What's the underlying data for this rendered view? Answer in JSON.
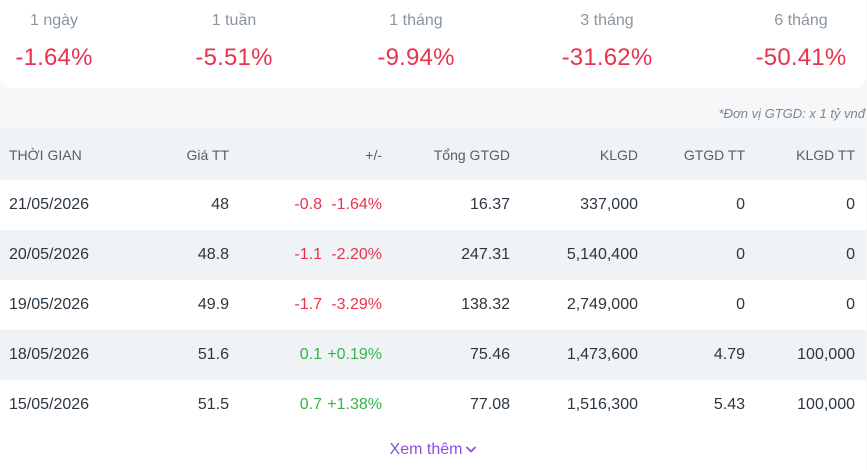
{
  "performance": [
    {
      "label": "1 ngày",
      "value": "-1.64%"
    },
    {
      "label": "1 tuần",
      "value": "-5.51%"
    },
    {
      "label": "1 tháng",
      "value": "-9.94%"
    },
    {
      "label": "3 tháng",
      "value": "-31.62%"
    },
    {
      "label": "6 tháng",
      "value": "-50.41%"
    }
  ],
  "unit_note": "*Đơn vị GTGD: x 1 tỷ vnđ",
  "table": {
    "headers": [
      "THỜI GIAN",
      "Giá TT",
      "+/-",
      "Tổng GTGD",
      "KLGD",
      "GTGD TT",
      "KLGD TT"
    ],
    "rows": [
      {
        "date": "21/05/2026",
        "price": "48",
        "change": "-0.8",
        "pct": "-1.64%",
        "direction": "down",
        "total_value": "16.37",
        "volume": "337,000",
        "deal_value": "0",
        "deal_volume": "0"
      },
      {
        "date": "20/05/2026",
        "price": "48.8",
        "change": "-1.1",
        "pct": "-2.20%",
        "direction": "down",
        "total_value": "247.31",
        "volume": "5,140,400",
        "deal_value": "0",
        "deal_volume": "0"
      },
      {
        "date": "19/05/2026",
        "price": "49.9",
        "change": "-1.7",
        "pct": "-3.29%",
        "direction": "down",
        "total_value": "138.32",
        "volume": "2,749,000",
        "deal_value": "0",
        "deal_volume": "0"
      },
      {
        "date": "18/05/2026",
        "price": "51.6",
        "change": "0.1",
        "pct": "+0.19%",
        "direction": "up",
        "total_value": "75.46",
        "volume": "1,473,600",
        "deal_value": "4.79",
        "deal_volume": "100,000"
      },
      {
        "date": "15/05/2026",
        "price": "51.5",
        "change": "0.7",
        "pct": "+1.38%",
        "direction": "up",
        "total_value": "77.08",
        "volume": "1,516,300",
        "deal_value": "5.43",
        "deal_volume": "100,000"
      }
    ]
  },
  "see_more": {
    "label": "Xem thêm",
    "icon": "chevron-down-icon"
  },
  "colors": {
    "negative": "#e8334e",
    "positive": "#36b44a",
    "accent": "#8a4fe0"
  }
}
